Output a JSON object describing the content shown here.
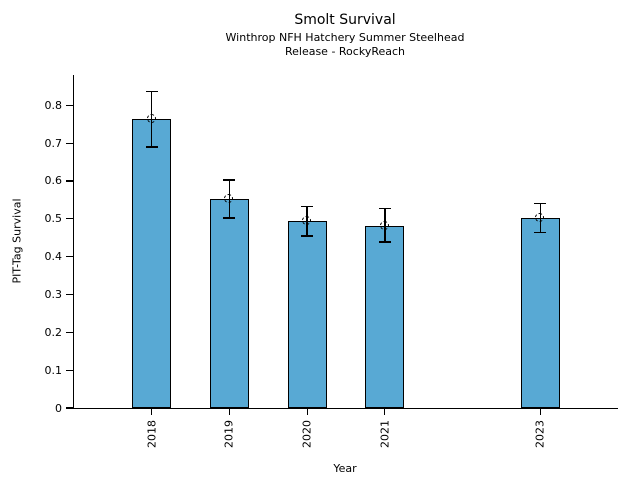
{
  "figure": {
    "title": "Smolt Survival",
    "subtitle_line1": "Winthrop NFH Hatchery Summer Steelhead",
    "subtitle_line2": "Release - RockyReach"
  },
  "chart_data": {
    "type": "bar",
    "title": "Smolt Survival",
    "subtitle": [
      "Winthrop NFH Hatchery Summer Steelhead",
      "Release - RockyReach"
    ],
    "xlabel": "Year",
    "ylabel": "PIT-Tag Survival",
    "categories": [
      2018,
      2019,
      2020,
      2021,
      2023
    ],
    "values": [
      0.763,
      0.552,
      0.493,
      0.482,
      0.501
    ],
    "error_low": [
      0.69,
      0.502,
      0.454,
      0.439,
      0.464
    ],
    "error_high": [
      0.837,
      0.602,
      0.533,
      0.527,
      0.54
    ],
    "xlim": [
      2017,
      2024
    ],
    "ylim": [
      0,
      0.88
    ],
    "yticks": [
      0,
      0.1,
      0.2,
      0.3,
      0.4,
      0.5,
      0.6,
      0.7,
      0.8
    ],
    "ytick_labels": [
      "0",
      "0.1",
      "0.2",
      "0.3",
      "0.4",
      "0.5",
      "0.6",
      "0.7",
      "0.8"
    ],
    "bar_width_years": 0.5,
    "bar_color": "#58a9d4",
    "bar_edge_color": "#000000",
    "error_color": "#000000",
    "marker": "open-circle-dashed",
    "grid": false,
    "legend_position": "none"
  }
}
